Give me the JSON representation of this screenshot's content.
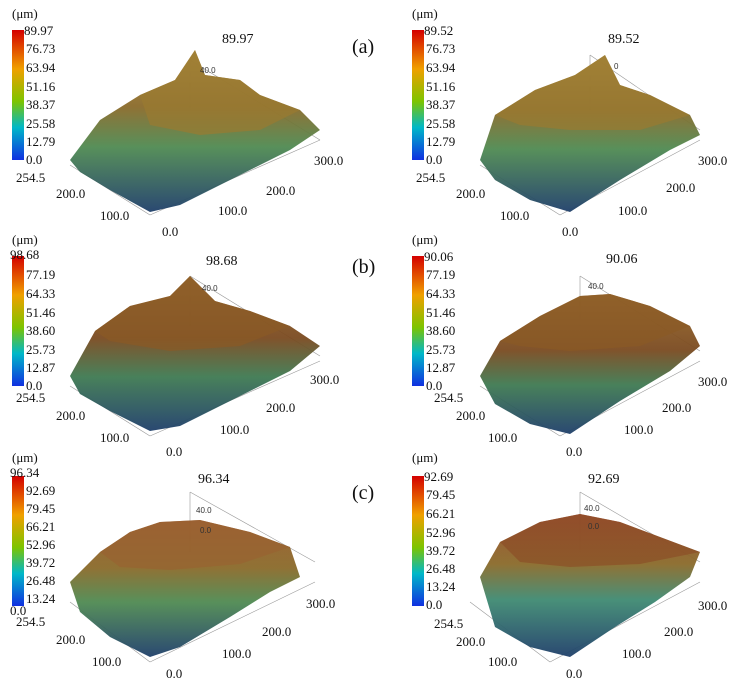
{
  "panels": [
    {
      "unit": "(μm)",
      "max": "89.97",
      "ticks": [
        "89.97",
        "76.73",
        "63.94",
        "51.16",
        "38.37",
        "25.58",
        "12.79",
        "0.0"
      ],
      "axis": [
        "254.5",
        "200.0",
        "100.0",
        "0.0",
        "100.0",
        "200.0",
        "300.0"
      ],
      "inner": [
        "40.0",
        ""
      ]
    },
    {
      "unit": "(μm)",
      "max": "89.52",
      "ticks": [
        "89.52",
        "76.73",
        "63.94",
        "51.16",
        "38.37",
        "25.58",
        "12.79",
        "0.0"
      ],
      "axis": [
        "254.5",
        "200.0",
        "100.0",
        "0.0",
        "100.0",
        "200.0",
        "300.0"
      ],
      "inner": [
        "0",
        ""
      ]
    },
    {
      "unit": "(μm)",
      "max": "98.68",
      "ticks": [
        "98.68",
        "77.19",
        "64.33",
        "51.46",
        "38.60",
        "25.73",
        "12.87",
        "0.0"
      ],
      "axis": [
        "254.5",
        "200.0",
        "100.0",
        "0.0",
        "100.0",
        "200.0",
        "300.0"
      ],
      "inner": [
        "40.0",
        ""
      ]
    },
    {
      "unit": "(μm)",
      "max": "90.06",
      "ticks": [
        "90.06",
        "77.19",
        "64.33",
        "51.46",
        "38.60",
        "25.73",
        "12.87",
        "0.0"
      ],
      "axis": [
        "254.5",
        "200.0",
        "100.0",
        "0.0",
        "100.0",
        "200.0",
        "300.0"
      ],
      "inner": [
        "40.0",
        ""
      ]
    },
    {
      "unit": "(μm)",
      "max": "96.34",
      "ticks": [
        "96.34",
        "92.69",
        "79.45",
        "66.21",
        "52.96",
        "39.72",
        "26.48",
        "13.24",
        "0.0"
      ],
      "axis": [
        "254.5",
        "200.0",
        "100.0",
        "0.0",
        "100.0",
        "200.0",
        "300.0"
      ],
      "inner": [
        "40.0",
        "0.0"
      ]
    },
    {
      "unit": "(μm)",
      "max": "92.69",
      "ticks": [
        "92.69",
        "79.45",
        "66.21",
        "52.96",
        "39.72",
        "26.48",
        "13.24",
        "0.0"
      ],
      "axis": [
        "254.5",
        "200.0",
        "100.0",
        "0.0",
        "100.0",
        "200.0",
        "300.0"
      ],
      "inner": [
        "40.0",
        "0.0"
      ]
    }
  ],
  "row_labels": [
    "(a)",
    "(b)",
    "(c)"
  ],
  "colors": {
    "high": "#d40000",
    "mid_high": "#f0a000",
    "mid": "#7dc400",
    "mid_low": "#00b8c8",
    "low": "#1030e0",
    "surface_top": "#8a6a2a",
    "surface_mid": "#4f8a52",
    "surface_low": "#1f3f6a"
  }
}
